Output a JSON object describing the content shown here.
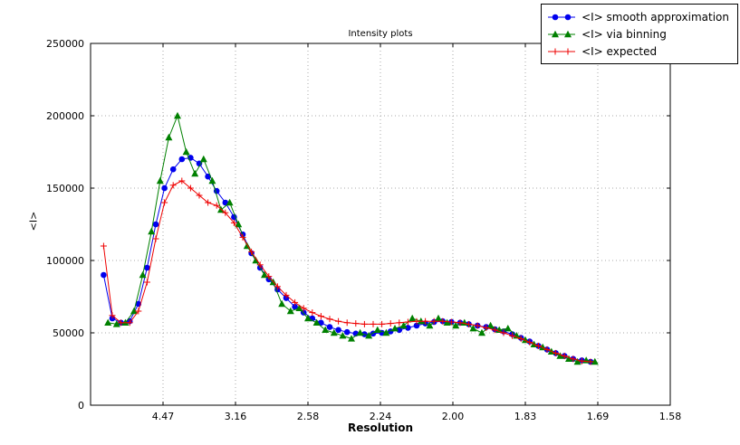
{
  "chart_data": {
    "type": "line",
    "title": "Intensity plots",
    "xlabel": "Resolution",
    "ylabel": "<I>",
    "grid": "dotted",
    "grid_color": "#a8a8a8",
    "legend_position": "upper right, outside top of axes",
    "x_axis": {
      "min": 0.0,
      "max": 0.4,
      "ticks": [
        0.05,
        0.1,
        0.15,
        0.2,
        0.25,
        0.3,
        0.35,
        0.4
      ],
      "tick_labels": [
        "4.47",
        "3.16",
        "2.58",
        "2.24",
        "2.00",
        "1.83",
        "1.69",
        "1.58"
      ]
    },
    "y_axis": {
      "min": 0,
      "max": 250000,
      "ticks": [
        0,
        50000,
        100000,
        150000,
        200000,
        250000
      ],
      "tick_labels": [
        "0",
        "50000",
        "100000",
        "150000",
        "200000",
        "250000"
      ]
    },
    "series": [
      {
        "name": "<I> smooth approximation",
        "color": "#0000ee",
        "marker": "circle",
        "x": [
          0.009,
          0.015,
          0.021,
          0.027,
          0.033,
          0.039,
          0.045,
          0.051,
          0.057,
          0.063,
          0.069,
          0.075,
          0.081,
          0.087,
          0.093,
          0.099,
          0.105,
          0.111,
          0.117,
          0.123,
          0.129,
          0.135,
          0.141,
          0.147,
          0.153,
          0.159,
          0.165,
          0.171,
          0.177,
          0.183,
          0.189,
          0.195,
          0.201,
          0.207,
          0.213,
          0.219,
          0.225,
          0.231,
          0.237,
          0.243,
          0.249,
          0.255,
          0.261,
          0.267,
          0.273,
          0.279,
          0.285,
          0.291,
          0.297,
          0.303,
          0.309,
          0.315,
          0.321,
          0.327,
          0.333,
          0.339,
          0.345
        ],
        "y": [
          90000,
          60000,
          57000,
          58000,
          70000,
          95000,
          125000,
          150000,
          163000,
          170000,
          171000,
          167000,
          158000,
          148000,
          140000,
          130000,
          118000,
          105000,
          95000,
          87000,
          80000,
          74000,
          68000,
          64000,
          60000,
          57000,
          54000,
          52000,
          50500,
          49500,
          49000,
          49500,
          50000,
          51000,
          52000,
          53500,
          55000,
          56500,
          57500,
          58000,
          57500,
          57000,
          56000,
          55000,
          54000,
          52500,
          51000,
          49000,
          46500,
          44000,
          41000,
          38500,
          36000,
          34000,
          32000,
          31000,
          30000
        ]
      },
      {
        "name": "<I> via binning",
        "color": "#008000",
        "marker": "triangle",
        "x": [
          0.012,
          0.018,
          0.024,
          0.03,
          0.036,
          0.042,
          0.048,
          0.054,
          0.06,
          0.066,
          0.072,
          0.078,
          0.084,
          0.09,
          0.096,
          0.102,
          0.108,
          0.114,
          0.12,
          0.126,
          0.132,
          0.138,
          0.144,
          0.15,
          0.156,
          0.162,
          0.168,
          0.174,
          0.18,
          0.186,
          0.192,
          0.198,
          0.204,
          0.21,
          0.216,
          0.222,
          0.228,
          0.234,
          0.24,
          0.246,
          0.252,
          0.258,
          0.264,
          0.27,
          0.276,
          0.282,
          0.288,
          0.294,
          0.3,
          0.306,
          0.312,
          0.318,
          0.324,
          0.33,
          0.336,
          0.342,
          0.348
        ],
        "y": [
          57000,
          56000,
          57000,
          65000,
          90000,
          120000,
          155000,
          185000,
          200000,
          175000,
          160000,
          170000,
          155000,
          135000,
          140000,
          125000,
          110000,
          100000,
          90000,
          85000,
          70000,
          65000,
          67000,
          60000,
          57000,
          52000,
          50000,
          48000,
          46000,
          50000,
          48000,
          52000,
          50000,
          53000,
          55000,
          60000,
          58000,
          55000,
          60000,
          57000,
          55000,
          57000,
          53000,
          50000,
          55000,
          52000,
          53000,
          48000,
          45000,
          42000,
          40000,
          37000,
          34000,
          32000,
          30000,
          31000,
          30000
        ]
      },
      {
        "name": "<I> expected",
        "color": "#ee0000",
        "marker": "plus",
        "x": [
          0.009,
          0.015,
          0.021,
          0.027,
          0.033,
          0.039,
          0.045,
          0.051,
          0.057,
          0.063,
          0.069,
          0.075,
          0.081,
          0.087,
          0.093,
          0.099,
          0.105,
          0.111,
          0.117,
          0.123,
          0.129,
          0.135,
          0.141,
          0.147,
          0.153,
          0.159,
          0.165,
          0.171,
          0.177,
          0.183,
          0.189,
          0.195,
          0.201,
          0.207,
          0.213,
          0.219,
          0.225,
          0.231,
          0.237,
          0.243,
          0.249,
          0.255,
          0.261,
          0.267,
          0.273,
          0.279,
          0.285,
          0.291,
          0.297,
          0.303,
          0.309,
          0.315,
          0.321,
          0.327,
          0.333,
          0.339,
          0.345
        ],
        "y": [
          110000,
          62000,
          57000,
          57000,
          65000,
          85000,
          115000,
          140000,
          152000,
          155000,
          150000,
          145000,
          140000,
          138000,
          133000,
          126000,
          116000,
          106000,
          97000,
          89000,
          82000,
          76000,
          71000,
          67000,
          64000,
          61500,
          59500,
          58000,
          57000,
          56500,
          56000,
          56000,
          56000,
          56500,
          57000,
          57500,
          58000,
          58000,
          58000,
          58000,
          57500,
          57000,
          56000,
          55000,
          53500,
          52000,
          50000,
          48000,
          46000,
          43500,
          41000,
          38500,
          36000,
          34000,
          32000,
          30500,
          30000
        ]
      }
    ]
  }
}
